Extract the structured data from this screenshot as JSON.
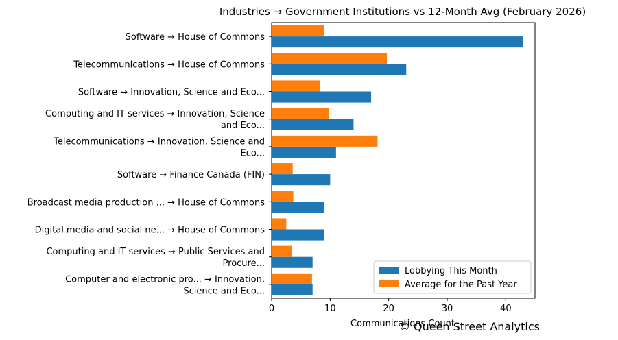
{
  "chart_data": {
    "type": "bar",
    "orientation": "horizontal",
    "title": "Industries → Government Institutions vs 12-Month Avg (February 2026)",
    "xlabel": "Communications Count",
    "ylabel": "",
    "xlim": [
      0,
      45
    ],
    "xticks": [
      0,
      10,
      20,
      30,
      40
    ],
    "grid": false,
    "legend_position": "lower-right",
    "categories": [
      [
        "Software → House of Commons"
      ],
      [
        "Telecommunications → House of Commons"
      ],
      [
        "Software → Innovation, Science and Eco..."
      ],
      [
        "Computing and IT services → Innovation, Science",
        "and Eco..."
      ],
      [
        "Telecommunications → Innovation, Science and",
        "Eco..."
      ],
      [
        "Software → Finance Canada (FIN)"
      ],
      [
        "Broadcast media production ... → House of Commons"
      ],
      [
        "Digital media and social ne... → House of Commons"
      ],
      [
        "Computing and IT services → Public Services and",
        "Procure..."
      ],
      [
        "Computer and electronic pro... → Innovation,",
        "Science and Eco..."
      ]
    ],
    "series": [
      {
        "name": "Lobbying This Month",
        "color": "#1f77b4",
        "values": [
          43,
          23,
          17,
          14,
          11,
          10,
          9,
          9,
          7,
          7
        ]
      },
      {
        "name": "Average for the Past Year",
        "color": "#ff7f0e",
        "values": [
          9.0,
          19.7,
          8.2,
          9.8,
          18.1,
          3.6,
          3.7,
          2.5,
          3.5,
          6.9
        ]
      }
    ]
  },
  "watermark": "© Queen Street Analytics"
}
